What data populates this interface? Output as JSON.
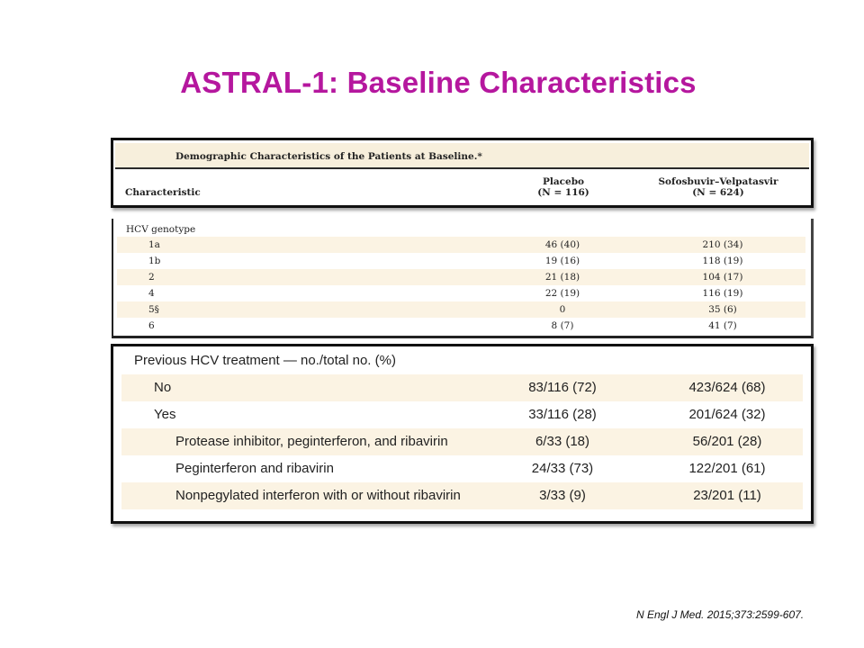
{
  "slide": {
    "title": "ASTRAL-1: Baseline Characteristics",
    "citation": "N Engl J Med. 2015;373:2599-607."
  },
  "table_header": {
    "caption": "Demographic Characteristics of the Patients at Baseline.*",
    "col_characteristic": "Characteristic",
    "col_placebo": "Placebo",
    "col_placebo_n": "(N = 116)",
    "col_sof": "Sofosbuvir–Velpatasvir",
    "col_sof_n": "(N = 624)"
  },
  "genotype": {
    "heading": "HCV genotype",
    "rows": [
      {
        "label": "1a",
        "placebo": "46 (40)",
        "sof": "210 (34)"
      },
      {
        "label": "1b",
        "placebo": "19 (16)",
        "sof": "118 (19)"
      },
      {
        "label": "2",
        "placebo": "21 (18)",
        "sof": "104 (17)"
      },
      {
        "label": "4",
        "placebo": "22 (19)",
        "sof": "116 (19)"
      },
      {
        "label": "5§",
        "placebo": "0",
        "sof": "35 (6)"
      },
      {
        "label": "6",
        "placebo": "8 (7)",
        "sof": "41 (7)"
      }
    ]
  },
  "treatment": {
    "heading": "Previous HCV treatment — no./total no. (%)",
    "rows": [
      {
        "label": "No",
        "placebo": "83/116 (72)",
        "sof": "423/624 (68)"
      },
      {
        "label": "Yes",
        "placebo": "33/116 (28)",
        "sof": "201/624 (32)"
      },
      {
        "label": "Protease inhibitor, peginterferon, and ribavirin",
        "placebo": "6/33 (18)",
        "sof": "56/201 (28)"
      },
      {
        "label": "Peginterferon and ribavirin",
        "placebo": "24/33 (73)",
        "sof": "122/201 (61)"
      },
      {
        "label": "Nonpegylated interferon with or without ribavirin",
        "placebo": "3/33 (9)",
        "sof": "23/201 (11)"
      }
    ]
  }
}
